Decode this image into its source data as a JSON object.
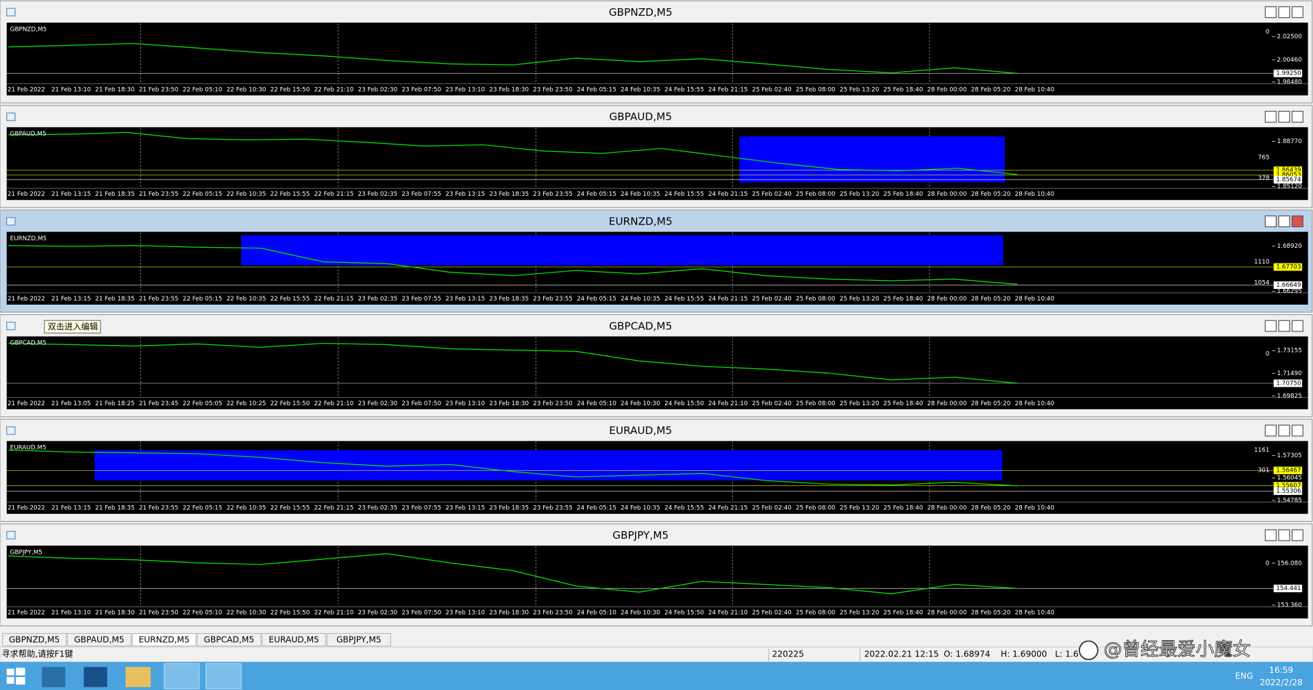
{
  "windows": [
    {
      "title": "GBPNZD,M5",
      "symbol": "GBPNZD,M5",
      "ylim": [
        1.9841,
        2.0376
      ],
      "yticks": [
        {
          "value": 2.025,
          "label": "2.02500"
        },
        {
          "value": 2.0046,
          "label": "2.00460"
        },
        {
          "value": 1.9848,
          "label": "1.98480"
        }
      ],
      "price_tags": [
        {
          "value": 1.9925,
          "label": "1.99250",
          "color": "#ffffff"
        }
      ],
      "side_labels": [
        0
      ],
      "prices": [
        2.016,
        2.0175,
        2.019,
        2.015,
        2.011,
        2.008,
        2.004,
        2.001,
        2.0,
        2.006,
        2.003,
        2.0055,
        2.001,
        1.996,
        1.993,
        1.9975,
        1.9925
      ],
      "x_labels": [
        "21 Feb 2022",
        "21 Feb 13:10",
        "21 Feb 18:30",
        "21 Feb 23:50",
        "22 Feb 05:10",
        "22 Feb 10:30",
        "22 Feb 15:50",
        "22 Feb 21:10",
        "23 Feb 02:30",
        "23 Feb 07:50",
        "23 Feb 13:10",
        "23 Feb 18:30",
        "23 Feb 23:50",
        "24 Feb 05:15",
        "24 Feb 10:35",
        "24 Feb 15:55",
        "24 Feb 21:15",
        "25 Feb 02:40",
        "25 Feb 08:00",
        "25 Feb 13:20",
        "25 Feb 18:40",
        "28 Feb 00:00",
        "28 Feb 05:20",
        "28 Feb 10:40"
      ]
    },
    {
      "title": "GBPAUD,M5",
      "symbol": "GBPAUD,M5",
      "ylim": [
        1.8505,
        1.8992
      ],
      "yticks": [
        {
          "value": 1.8877,
          "label": "1.88770"
        },
        {
          "value": 1.8512,
          "label": "1.85120"
        }
      ],
      "price_tags": [
        {
          "value": 1.86439,
          "label": "1.86439",
          "color": "#ffff00"
        },
        {
          "value": 1.86053,
          "label": "1.86053",
          "color": "#ffff00"
        },
        {
          "value": 1.85674,
          "label": "1.85674",
          "color": "#ffffff"
        }
      ],
      "side_labels": [
        765,
        378
      ],
      "prices": [
        1.893,
        1.8935,
        1.895,
        1.89,
        1.889,
        1.8895,
        1.887,
        1.884,
        1.885,
        1.88,
        1.878,
        1.882,
        1.876,
        1.87,
        1.865,
        1.864,
        1.866,
        1.861
      ],
      "x_labels": [
        "21 Feb 2022",
        "21 Feb 13:15",
        "21 Feb 18:35",
        "21 Feb 23:55",
        "22 Feb 05:15",
        "22 Feb 10:35",
        "22 Feb 15:55",
        "22 Feb 21:15",
        "23 Feb 02:35",
        "23 Feb 07:55",
        "23 Feb 13:15",
        "23 Feb 18:35",
        "23 Feb 23:55",
        "24 Feb 05:15",
        "24 Feb 10:35",
        "24 Feb 15:55",
        "24 Feb 21:15",
        "25 Feb 02:40",
        "25 Feb 08:00",
        "25 Feb 13:20",
        "25 Feb 18:40",
        "28 Feb 00:00",
        "28 Feb 05:20",
        "28 Feb 10:40"
      ]
    },
    {
      "title": "EURNZD,M5",
      "symbol": "EURNZD,M5",
      "ylim": [
        1.66246,
        1.69746
      ],
      "yticks": [
        {
          "value": 1.6892,
          "label": "1.68920"
        },
        {
          "value": 1.66295,
          "label": "1.66295"
        }
      ],
      "price_tags": [
        {
          "value": 1.67703,
          "label": "1.67703",
          "color": "#ffff00"
        },
        {
          "value": 1.66649,
          "label": "1.66649",
          "color": "#ffffff"
        }
      ],
      "side_labels": [
        1110,
        1054
      ],
      "prices": [
        1.6895,
        1.689,
        1.6895,
        1.6885,
        1.688,
        1.68,
        1.679,
        1.674,
        1.672,
        1.675,
        1.673,
        1.676,
        1.672,
        1.67,
        1.669,
        1.67,
        1.667
      ],
      "x_labels": [
        "21 Feb 2022",
        "21 Feb 13:15",
        "21 Feb 18:35",
        "21 Feb 23:55",
        "22 Feb 05:15",
        "22 Feb 10:35",
        "22 Feb 15:55",
        "22 Feb 21:15",
        "23 Feb 02:35",
        "23 Feb 07:55",
        "23 Feb 13:15",
        "23 Feb 18:35",
        "23 Feb 23:55",
        "24 Feb 05:15",
        "24 Feb 10:35",
        "24 Feb 15:55",
        "24 Feb 21:15",
        "25 Feb 02:40",
        "25 Feb 08:00",
        "25 Feb 13:20",
        "25 Feb 18:40",
        "28 Feb 00:00",
        "28 Feb 05:20",
        "28 Feb 10:40"
      ]
    },
    {
      "title": "GBPCAD,M5",
      "symbol": "GBPCAD,M5",
      "ylim": [
        1.69763,
        1.74204
      ],
      "yticks": [
        {
          "value": 1.73155,
          "label": "1.73155"
        },
        {
          "value": 1.7149,
          "label": "1.71490"
        },
        {
          "value": 1.69825,
          "label": "1.69825"
        }
      ],
      "price_tags": [
        {
          "value": 1.7075,
          "label": "1.70750",
          "color": "#ffffff"
        }
      ],
      "side_labels": [
        0
      ],
      "prices": [
        1.737,
        1.736,
        1.735,
        1.7365,
        1.734,
        1.737,
        1.736,
        1.733,
        1.732,
        1.731,
        1.724,
        1.72,
        1.718,
        1.715,
        1.71,
        1.712,
        1.7075
      ],
      "x_labels": [
        "21 Feb 2022",
        "21 Feb 13:05",
        "21 Feb 18:25",
        "21 Feb 23:45",
        "22 Feb 05:05",
        "22 Feb 10:25",
        "22 Feb 15:50",
        "22 Feb 21:10",
        "23 Feb 02:30",
        "23 Feb 07:50",
        "23 Feb 13:10",
        "23 Feb 18:30",
        "23 Feb 23:50",
        "24 Feb 05:10",
        "24 Feb 10:30",
        "24 Feb 15:50",
        "24 Feb 21:10",
        "25 Feb 02:40",
        "25 Feb 08:00",
        "25 Feb 13:20",
        "25 Feb 18:40",
        "28 Feb 00:00",
        "28 Feb 05:20",
        "28 Feb 10:40"
      ]
    },
    {
      "title": "EURAUD,M5",
      "symbol": "EURAUD,M5",
      "ylim": [
        1.54738,
        1.58113
      ],
      "yticks": [
        {
          "value": 1.57305,
          "label": "1.57305"
        },
        {
          "value": 1.56045,
          "label": "1.56045"
        },
        {
          "value": 1.54785,
          "label": "1.54785"
        }
      ],
      "price_tags": [
        {
          "value": 1.56467,
          "label": "1.56467",
          "color": "#ffff00"
        },
        {
          "value": 1.55607,
          "label": "1.55607",
          "color": "#ffff00"
        },
        {
          "value": 1.55306,
          "label": "1.55306",
          "color": "#ffffff"
        }
      ],
      "side_labels": [
        1161,
        301
      ],
      "prices": [
        1.576,
        1.575,
        1.5745,
        1.574,
        1.572,
        1.569,
        1.567,
        1.568,
        1.564,
        1.561,
        1.562,
        1.563,
        1.559,
        1.557,
        1.5565,
        1.558,
        1.556
      ],
      "x_labels": [
        "21 Feb 2022",
        "21 Feb 13:15",
        "21 Feb 18:35",
        "21 Feb 23:55",
        "22 Feb 05:15",
        "22 Feb 10:35",
        "22 Feb 15:55",
        "22 Feb 21:15",
        "23 Feb 02:35",
        "23 Feb 07:55",
        "23 Feb 13:15",
        "23 Feb 18:35",
        "23 Feb 23:55",
        "24 Feb 05:15",
        "24 Feb 10:35",
        "24 Feb 15:55",
        "24 Feb 21:15",
        "25 Feb 02:40",
        "25 Feb 08:00",
        "25 Feb 13:20",
        "25 Feb 18:40",
        "28 Feb 00:00",
        "28 Feb 05:20",
        "28 Feb 10:40"
      ]
    },
    {
      "title": "GBPJPY,M5",
      "symbol": "GBPJPY,M5",
      "ylim": [
        153.31,
        157.22
      ],
      "yticks": [
        {
          "value": 156.08,
          "label": "156.080"
        },
        {
          "value": 153.36,
          "label": "153.360"
        }
      ],
      "price_tags": [
        {
          "value": 154.441,
          "label": "154.441",
          "color": "#ffffff"
        }
      ],
      "side_labels": [
        0
      ],
      "prices": [
        156.55,
        156.4,
        156.3,
        156.1,
        156.0,
        156.35,
        156.7,
        156.1,
        155.6,
        154.6,
        154.2,
        154.9,
        154.7,
        154.5,
        154.1,
        154.7,
        154.44
      ],
      "x_labels": [
        "21 Feb 2022",
        "21 Feb 13:10",
        "21 Feb 18:30",
        "21 Feb 23:50",
        "22 Feb 05:10",
        "22 Feb 10:30",
        "22 Feb 15:50",
        "22 Feb 21:10",
        "23 Feb 02:30",
        "23 Feb 07:50",
        "23 Feb 13:10",
        "23 Feb 18:30",
        "23 Feb 23:50",
        "24 Feb 05:10",
        "24 Feb 10:30",
        "24 Feb 15:50",
        "24 Feb 21:10",
        "25 Feb 02:40",
        "25 Feb 08:00",
        "25 Feb 13:20",
        "25 Feb 18:40",
        "28 Feb 00:00",
        "28 Feb 05:20",
        "28 Feb 10:40"
      ]
    }
  ],
  "tooltip": "双击进入编辑",
  "tabs": [
    "GBPNZD,M5",
    "GBPAUD,M5",
    "EURNZD,M5",
    "GBPCAD,M5",
    "EURAUD,M5",
    "GBPJPY,M5"
  ],
  "status": {
    "help": "寻求帮助,请按F1键",
    "code": "220225",
    "time": "2022.02.21 12:15",
    "open": "O: 1.68974",
    "high": "H: 1.69000",
    "low": "L: 1.6"
  },
  "watermark": "@曾经最爱小魔女",
  "taskbar": {
    "lang": "ENG",
    "clock": "16:59",
    "date": "2022/2/28"
  }
}
